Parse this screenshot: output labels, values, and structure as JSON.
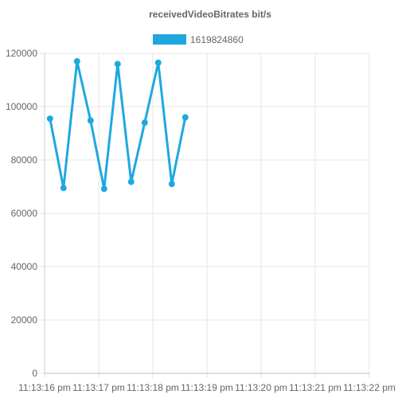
{
  "chart_data": {
    "type": "line",
    "title": "receivedVideoBitrates bit/s",
    "xlabel": "",
    "ylabel": "",
    "x_ticks": [
      "11:13:16 pm",
      "11:13:17 pm",
      "11:13:18 pm",
      "11:13:19 pm",
      "11:13:20 pm",
      "11:13:21 pm",
      "11:13:22 pm"
    ],
    "ylim": [
      0,
      120000
    ],
    "y_ticks": [
      0,
      20000,
      40000,
      60000,
      80000,
      100000,
      120000
    ],
    "grid": true,
    "legend_position": "top",
    "series": [
      {
        "name": "1619824860",
        "color": "#1fa8e0",
        "x": [
          0.1,
          0.35,
          0.6,
          0.85,
          1.1,
          1.35,
          1.6,
          1.85,
          2.1,
          2.35,
          2.6
        ],
        "y": [
          95500,
          69500,
          117000,
          94800,
          69200,
          116000,
          71800,
          94000,
          116500,
          71000,
          96000
        ]
      }
    ]
  }
}
